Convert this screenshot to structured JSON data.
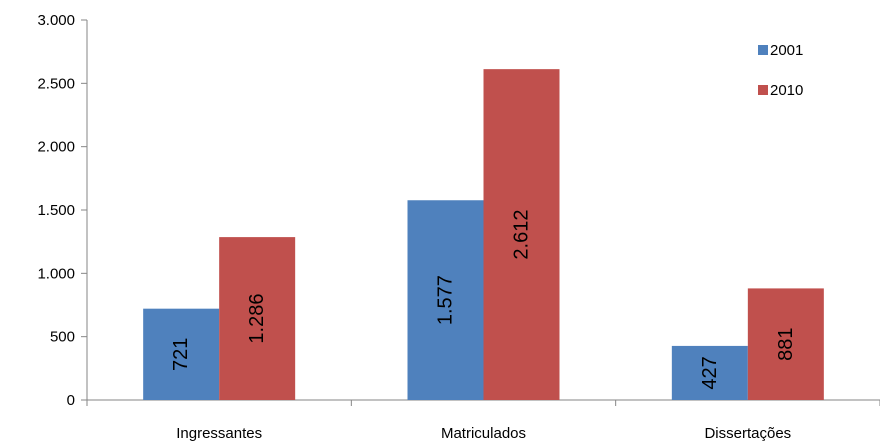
{
  "chart_data": {
    "type": "bar",
    "title": "",
    "xlabel": "",
    "ylabel": "",
    "categories": [
      "Ingressantes",
      "Matriculados",
      "Dissertações"
    ],
    "series": [
      {
        "name": "2001",
        "color": "#4F81BD",
        "values": [
          721,
          1577,
          427
        ],
        "labels": [
          "721",
          "1.577",
          "427"
        ]
      },
      {
        "name": "2010",
        "color": "#C0504D",
        "values": [
          1286,
          2612,
          881
        ],
        "labels": [
          "1.286",
          "2.612",
          "881"
        ]
      }
    ],
    "ylim": [
      0,
      3000
    ],
    "yticks": [
      0,
      500,
      1000,
      1500,
      2000,
      2500,
      3000
    ],
    "ytick_labels": [
      "0",
      "500",
      "1.000",
      "1.500",
      "2.000",
      "2.500",
      "3.000"
    ],
    "grid": false,
    "legend_position": "top-right",
    "data_label_orientation": "vertical"
  }
}
